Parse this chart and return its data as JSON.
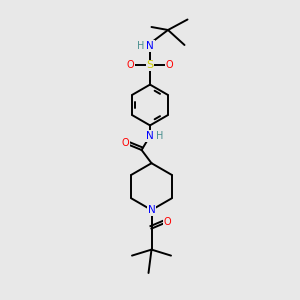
{
  "bg_color": "#e8e8e8",
  "atom_colors": {
    "C": "#000000",
    "H": "#4a9090",
    "N": "#0000ff",
    "O": "#ff0000",
    "S": "#cccc00"
  },
  "bond_color": "#000000",
  "bond_width": 1.4,
  "fig_size": [
    3.0,
    3.0
  ],
  "dpi": 100
}
